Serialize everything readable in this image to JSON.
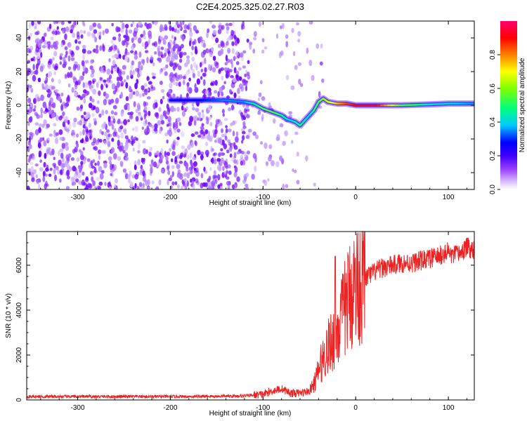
{
  "figure_title": "C2E4.2025.325.02.27.R03",
  "chart_data": [
    {
      "type": "heatmap",
      "title": "C2E4.2025.325.02.27.R03",
      "xlabel": "Height of straight line (km)",
      "ylabel": "Frequency (Hz)",
      "xlim": [
        -355,
        128
      ],
      "ylim": [
        -50,
        50
      ],
      "xticks": [
        -300,
        -200,
        -100,
        0,
        100
      ],
      "yticks": [
        -40,
        -20,
        0,
        20,
        40
      ],
      "xtick_labels": [
        "-300",
        "-200",
        "-100",
        "0",
        "100"
      ],
      "ytick_labels": [
        "-40",
        "-20",
        "0",
        "20",
        "40"
      ],
      "colorbar": {
        "label": "Normalized spectral amplitude",
        "range": [
          0,
          1
        ],
        "ticks": [
          0.0,
          0.2,
          0.4,
          0.6,
          0.8
        ],
        "tick_labels": [
          "0.0",
          "0.2",
          "0.4",
          "0.6",
          "0.8"
        ],
        "colormap": [
          "#ffffff",
          "#d8a8ff",
          "#7a00ff",
          "#0000ff",
          "#00c0ff",
          "#00ff80",
          "#80ff00",
          "#ffff00",
          "#ff8000",
          "#ff0000",
          "#ff0080"
        ]
      },
      "signal_track": {
        "x": [
          -200,
          -180,
          -160,
          -140,
          -120,
          -110,
          -100,
          -90,
          -80,
          -75,
          -70,
          -65,
          -60,
          -55,
          -50,
          -45,
          -40,
          -35,
          -30,
          -20,
          -10,
          0,
          20,
          50,
          80,
          100,
          128
        ],
        "y": [
          3,
          3,
          3,
          3,
          2,
          1,
          -2,
          -4,
          -6,
          -8,
          -9,
          -10,
          -12,
          -9,
          -6,
          -3,
          2,
          4,
          2,
          1,
          1,
          0,
          0,
          0,
          0.5,
          1,
          1
        ],
        "amplitude": [
          0.25,
          0.25,
          0.3,
          0.35,
          0.35,
          0.45,
          0.55,
          0.55,
          0.5,
          0.45,
          0.4,
          0.45,
          0.5,
          0.45,
          0.4,
          0.5,
          0.55,
          0.6,
          0.65,
          0.75,
          0.85,
          0.9,
          0.95,
          0.55,
          0.45,
          0.4,
          0.35
        ]
      }
    },
    {
      "type": "line",
      "xlabel": "Height of straight line (km)",
      "ylabel": "SNR (10 * v/v)",
      "xlim": [
        -355,
        128
      ],
      "ylim": [
        0,
        7500
      ],
      "xticks": [
        -300,
        -200,
        -100,
        0,
        100
      ],
      "yticks": [
        0,
        2000,
        4000,
        6000
      ],
      "xtick_labels": [
        "-300",
        "-200",
        "-100",
        "0",
        "100"
      ],
      "ytick_labels": [
        "0",
        "2000",
        "4000",
        "6000"
      ],
      "color": "#ee2222",
      "series": [
        {
          "name": "SNR",
          "x": [
            -355,
            -300,
            -250,
            -200,
            -150,
            -120,
            -100,
            -90,
            -80,
            -70,
            -60,
            -50,
            -45,
            -40,
            -35,
            -30,
            -25,
            -20,
            -15,
            -10,
            -5,
            0,
            10,
            20,
            30,
            40,
            50,
            60,
            70,
            80,
            90,
            95,
            100,
            105,
            110,
            115,
            120,
            128
          ],
          "y": [
            150,
            150,
            150,
            150,
            160,
            180,
            250,
            400,
            500,
            300,
            300,
            400,
            700,
            1300,
            1900,
            2300,
            2700,
            3100,
            3600,
            4300,
            4800,
            5100,
            5400,
            5700,
            5900,
            6000,
            6100,
            6100,
            6200,
            6300,
            6400,
            6500,
            6600,
            6400,
            6500,
            6600,
            6800,
            6700
          ]
        }
      ]
    }
  ]
}
